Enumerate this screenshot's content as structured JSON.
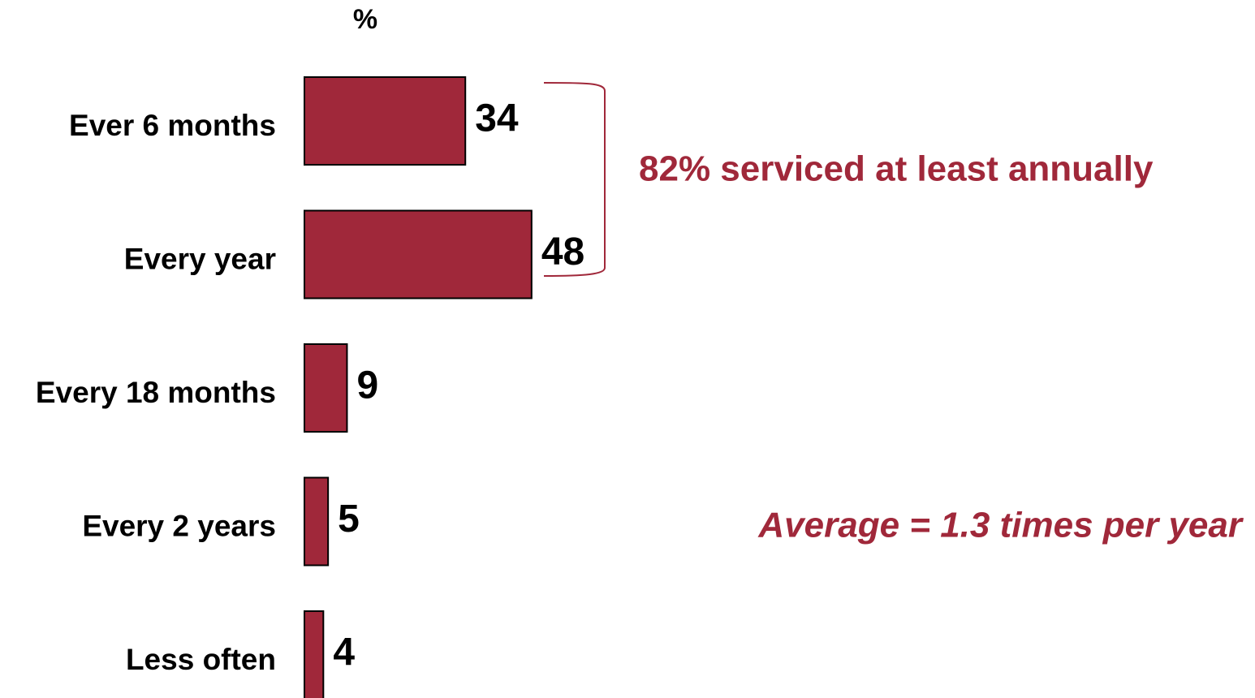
{
  "chart_data": {
    "type": "bar",
    "orientation": "horizontal",
    "title": "%",
    "categories": [
      "Ever 6 months",
      "Every year",
      "Every 18 months",
      "Every 2 years",
      "Less often"
    ],
    "values": [
      34,
      48,
      9,
      5,
      4
    ],
    "color": "#a0283a",
    "annotations": [
      "82% serviced at least annually",
      "Average = 1.3 times per year"
    ]
  }
}
